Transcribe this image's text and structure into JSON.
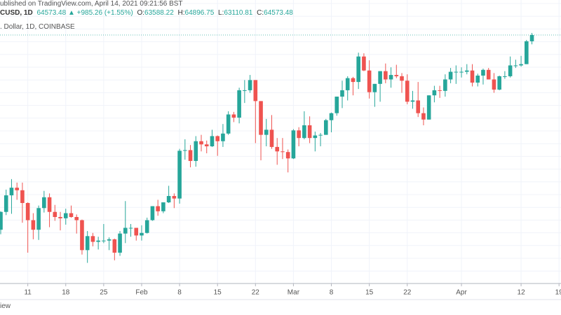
{
  "header": {
    "published": "ublished on TradingView.com, April 14, 2021 09:21:56 BST",
    "symbol": "CUSD, 1D",
    "last": "64573.48 ▲ +985.26 (+1.55%)",
    "open_label": "O:",
    "open": "63588.22",
    "high_label": "H:",
    "high": "64896.75",
    "low_label": "L:",
    "low": "63110.81",
    "close_label": "C:",
    "close": "64573.48",
    "description": ". Dollar, 1D, COINBASE"
  },
  "footer": {
    "text": "iew"
  },
  "chart_data": {
    "type": "candlestick",
    "categories": [
      null,
      null,
      null,
      null,
      null,
      "11",
      null,
      null,
      null,
      null,
      null,
      null,
      "18",
      null,
      null,
      null,
      null,
      null,
      null,
      "25",
      null,
      null,
      null,
      null,
      null,
      null,
      "Feb",
      null,
      null,
      null,
      null,
      null,
      null,
      "8",
      null,
      null,
      null,
      null,
      null,
      null,
      "15",
      null,
      null,
      null,
      null,
      null,
      null,
      "22",
      null,
      null,
      null,
      null,
      null,
      null,
      "Mar",
      null,
      null,
      null,
      null,
      null,
      null,
      "8",
      null,
      null,
      null,
      null,
      null,
      null,
      "15",
      null,
      null,
      null,
      null,
      null,
      null,
      "22",
      null,
      null,
      null,
      null,
      null,
      null,
      null,
      null,
      null,
      "Apr",
      null,
      null,
      null,
      null,
      null,
      null,
      null,
      null,
      null,
      null,
      "12",
      null,
      null,
      null,
      null,
      null,
      null,
      "19"
    ],
    "open": [
      34000,
      36800,
      39400,
      40600,
      40200,
      38200,
      35500,
      34000,
      37400,
      39100,
      36800,
      36000,
      35800,
      36600,
      36000,
      35500,
      30800,
      33000,
      32100,
      32300,
      32300,
      32500,
      30400,
      33400,
      34300,
      34300,
      33100,
      33500,
      35500,
      37700,
      36900,
      38300,
      39300,
      38900,
      46400,
      46500,
      44800,
      47900,
      47400,
      47100,
      48700,
      47900,
      49100,
      52100,
      51600,
      55900,
      55900,
      57500,
      54200,
      48900,
      49700,
      47000,
      46300,
      46200,
      45200,
      49600,
      48400,
      50400,
      48400,
      48800,
      48900,
      51200,
      52300,
      54900,
      55900,
      57800,
      57200,
      61200,
      59000,
      55600,
      56900,
      58900,
      57600,
      58300,
      58100,
      57400,
      54100,
      54300,
      52300,
      51300,
      55100,
      55900,
      55800,
      57600,
      58800,
      58800,
      58800,
      59000,
      57100,
      58200,
      59100,
      57600,
      56000,
      58100,
      58100,
      59800,
      59800,
      60000,
      63588.22,
      null,
      null,
      null,
      null,
      null
    ],
    "high": [
      36900,
      40300,
      41950,
      41400,
      41400,
      38300,
      36600,
      37800,
      40100,
      39700,
      37900,
      36800,
      37300,
      37800,
      36400,
      35600,
      33800,
      33500,
      32900,
      34900,
      32800,
      32600,
      33800,
      38500,
      34900,
      34300,
      34700,
      35900,
      37700,
      38700,
      38300,
      40900,
      39700,
      46700,
      48200,
      47300,
      48700,
      48900,
      48000,
      49700,
      48800,
      50600,
      52600,
      52500,
      56300,
      57500,
      58300,
      57500,
      54200,
      51400,
      52000,
      48400,
      48400,
      46600,
      49800,
      50100,
      52600,
      51800,
      49400,
      49200,
      51400,
      52400,
      54900,
      57400,
      58100,
      58000,
      61800,
      61700,
      60600,
      56900,
      58900,
      60100,
      59500,
      59900,
      58600,
      58400,
      55800,
      57200,
      53200,
      55100,
      56600,
      56600,
      58400,
      59400,
      59800,
      59500,
      60000,
      60000,
      58500,
      59300,
      59400,
      58600,
      58200,
      58900,
      61200,
      60700,
      61300,
      63800,
      64896.75,
      null,
      null,
      null,
      null,
      null
    ],
    "low": [
      33300,
      36300,
      36500,
      38700,
      35100,
      30400,
      32500,
      32400,
      36700,
      34400,
      35400,
      33900,
      34800,
      35900,
      33400,
      30100,
      28800,
      31400,
      30900,
      31900,
      30800,
      29200,
      29900,
      31900,
      32900,
      32300,
      32300,
      33400,
      35400,
      36200,
      36600,
      38200,
      37400,
      38100,
      45000,
      43800,
      43900,
      46300,
      46000,
      47000,
      45600,
      47000,
      48900,
      50900,
      50700,
      53900,
      55500,
      47600,
      44900,
      47100,
      46700,
      44200,
      45100,
      43000,
      45100,
      47100,
      48200,
      47600,
      46300,
      47100,
      48900,
      49300,
      51900,
      53100,
      54300,
      55100,
      56100,
      58900,
      54600,
      53300,
      54100,
      57000,
      56300,
      57800,
      55500,
      53700,
      53000,
      51700,
      50400,
      51300,
      54000,
      54700,
      54900,
      57000,
      56900,
      57900,
      58400,
      56500,
      56500,
      56800,
      57600,
      55500,
      55900,
      57700,
      57900,
      59400,
      59600,
      60000,
      63110.81,
      null,
      null,
      null,
      null,
      null
    ],
    "close": [
      36800,
      39400,
      40600,
      40200,
      38200,
      35500,
      34000,
      37400,
      39100,
      36800,
      36000,
      35800,
      36600,
      36000,
      35500,
      30800,
      33000,
      32100,
      32300,
      32300,
      32500,
      30400,
      33400,
      34300,
      34300,
      33100,
      33500,
      35500,
      37700,
      36900,
      38300,
      39300,
      38900,
      46400,
      46500,
      44800,
      47900,
      47400,
      47100,
      48700,
      47900,
      49100,
      52100,
      51600,
      55900,
      55900,
      57500,
      54200,
      48900,
      49700,
      47000,
      46300,
      46200,
      45200,
      49600,
      48400,
      50400,
      48400,
      48800,
      48900,
      51200,
      52300,
      54900,
      55900,
      57800,
      57200,
      61200,
      59000,
      55600,
      56900,
      58900,
      57600,
      58300,
      58100,
      57400,
      54100,
      54300,
      52300,
      51300,
      55100,
      55900,
      55800,
      57600,
      58800,
      58800,
      58800,
      59000,
      57100,
      58200,
      59100,
      57600,
      56000,
      58100,
      58100,
      59800,
      59800,
      60000,
      63588.22,
      64573.48,
      null,
      null,
      null,
      null,
      null
    ],
    "up_color": "#26a69a",
    "down_color": "#ef5350",
    "ylim": [
      25560,
      70070
    ],
    "grid": true
  }
}
